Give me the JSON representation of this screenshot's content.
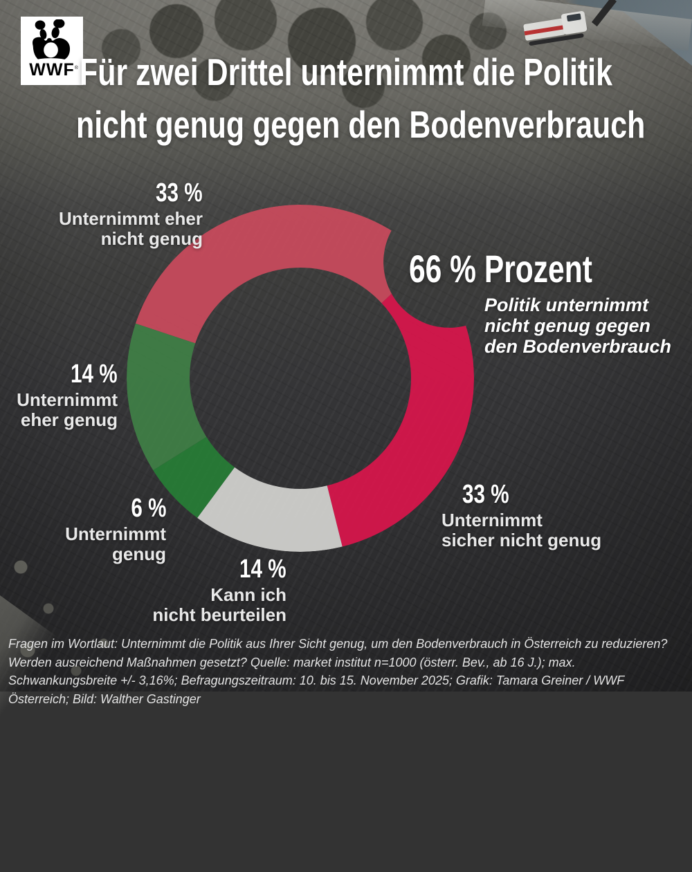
{
  "brand": {
    "wordmark": "WWF",
    "registered_mark": "®"
  },
  "title": {
    "line1": "Für zwei Drittel unternimmt die Politik",
    "line2": "nicht genug gegen den Bodenverbrauch"
  },
  "callout": {
    "value": "66 % Prozent",
    "line1": "Politik unternimmt",
    "line2": "nicht genug gegen",
    "line3": "den Bodenverbrauch"
  },
  "labels": {
    "eher_nicht_genug": {
      "value": "33 %",
      "line1": "Unternimmt eher",
      "line2": "nicht genug"
    },
    "eher_genug": {
      "value": "14 %",
      "line1": "Unternimmt",
      "line2": "eher genug"
    },
    "genug": {
      "value": "6 %",
      "line1": "Unternimmt",
      "line2": "genug"
    },
    "nicht_beurteilen": {
      "value": "14 %",
      "line1": "Kann ich",
      "line2": "nicht beurteilen"
    },
    "sicher_nicht_genug": {
      "value": "33 %",
      "line1": "Unternimmt",
      "line2": "sicher nicht genug"
    }
  },
  "chart_data": {
    "type": "pie",
    "donut": true,
    "title": "Für zwei Drittel unternimmt die Politik nicht genug gegen den Bodenverbrauch",
    "segments": [
      {
        "label": "Unternimmt eher nicht genug",
        "value": 33,
        "color": "#c94a5c"
      },
      {
        "label": "Unternimmt sicher nicht genug",
        "value": 33,
        "color": "#d8164b"
      },
      {
        "label": "Kann ich nicht beurteilen",
        "value": 14,
        "color": "#d3d3d0"
      },
      {
        "label": "Unternimmt genug",
        "value": 6,
        "color": "#277d36"
      },
      {
        "label": "Unternimmt eher genug",
        "value": 14,
        "color": "#3f7f46"
      }
    ],
    "highlight": {
      "value": "66 %",
      "label": "Politik unternimmt nicht genug gegen den Bodenverbrauch"
    },
    "start_angle_deg": -71.6,
    "direction": "clockwise",
    "center": [
      434,
      547
    ],
    "outer_radius": 251,
    "inner_radius": 160,
    "notch": {
      "angle_deg": 52,
      "distance": 273,
      "radius": 95
    },
    "segment_opacity": 0.93,
    "legend_position": "around"
  },
  "footer": {
    "text": "Fragen im Wortlaut: Unternimmt die Politik aus Ihrer Sicht genug, um den Bodenverbrauch in Österreich zu reduzieren? Werden ausreichend Maßnahmen gesetzt? Quelle: market institut n=1000 (österr. Bev., ab 16 J.); max. Schwankungsbreite +/- 3,16%; Befragungszeitraum: 10. bis 15. November 2025; Grafik: Tamara Greiner / WWF Österreich; Bild: Walther Gastinger"
  }
}
